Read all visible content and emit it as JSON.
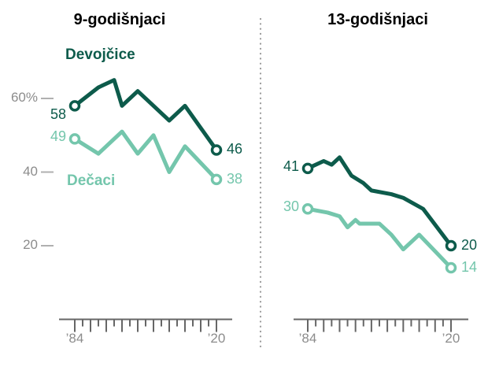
{
  "chart_data": {
    "type": "line",
    "unit": "%",
    "description_visible_values": "percentage lines for girls and boys, 1984 to 2020",
    "y_axis": {
      "ticks": [
        {
          "value": 60,
          "label": "60%"
        },
        {
          "value": 40,
          "label": "40"
        },
        {
          "value": 20,
          "label": "20"
        }
      ]
    },
    "panels": [
      {
        "title": "9-godišnjaci",
        "x_axis": {
          "start_year": 1984,
          "end_year": 2020,
          "tick_step": 2,
          "major_tick_every": 4,
          "start_label": "’84",
          "end_label": "’20"
        },
        "series": [
          {
            "name": "Devojčice",
            "role": "girls",
            "color": "dark_green",
            "x": [
              1984,
              1990,
              1994,
              1996,
              2000,
              2008,
              2012,
              2020
            ],
            "values": [
              58,
              63,
              65,
              58,
              62,
              54,
              58,
              46
            ],
            "start_label": "58",
            "end_label": "46"
          },
          {
            "name": "Dečaci",
            "role": "boys",
            "color": "light_green",
            "x": [
              1984,
              1990,
              1993,
              1996,
              2000,
              2004,
              2008,
              2012,
              2020
            ],
            "values": [
              49,
              45,
              48,
              51,
              45,
              50,
              40,
              47,
              38
            ],
            "start_label": "49",
            "end_label": "38"
          }
        ]
      },
      {
        "title": "13-godišnjaci",
        "x_axis": {
          "start_year": 1984,
          "end_year": 2020,
          "tick_step": 2,
          "major_tick_every": 4,
          "start_label": "’84",
          "end_label": "’20"
        },
        "series": [
          {
            "name": "Devojčice",
            "role": "girls",
            "color": "dark_green",
            "x": [
              1984,
              1988,
              1990,
              1992,
              1995,
              1998,
              2000,
              2005,
              2008,
              2013,
              2020
            ],
            "values": [
              41,
              43,
              42,
              44,
              39,
              37,
              35,
              34,
              33,
              30,
              20
            ],
            "start_label": "41",
            "end_label": "20"
          },
          {
            "name": "Dečaci",
            "role": "boys",
            "color": "light_green",
            "x": [
              1984,
              1989,
              1992,
              1994,
              1996,
              1997,
              2002,
              2005,
              2008,
              2012,
              2020
            ],
            "values": [
              30,
              29,
              28,
              25,
              27,
              26,
              26,
              23,
              19,
              23,
              14
            ],
            "start_label": "30",
            "end_label": "14"
          }
        ]
      }
    ]
  },
  "colors": {
    "dark_green": "#0d5b4b",
    "light_green": "#74c6ac",
    "axis": "#666666",
    "axis_label": "#8c8c8c",
    "tick_dash": "#b0b0b0",
    "divider": "#999999",
    "title": "#000000",
    "background": "#ffffff"
  }
}
